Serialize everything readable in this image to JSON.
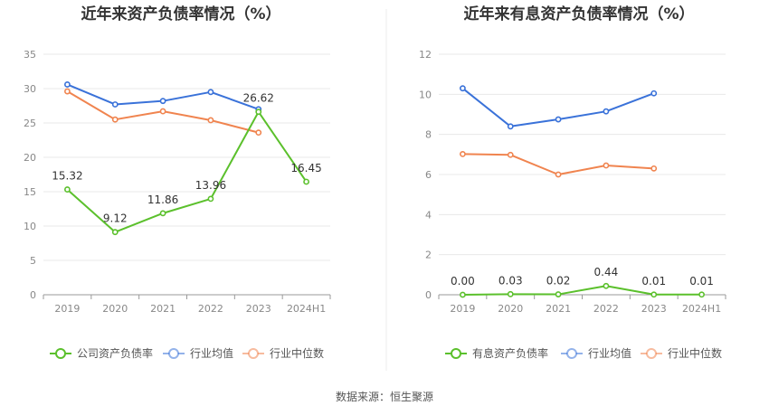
{
  "source": "数据来源：恒生聚源",
  "chart_data": [
    {
      "type": "line",
      "title": "近年来资产负债率情况（%）",
      "categories": [
        "2019",
        "2020",
        "2021",
        "2022",
        "2023",
        "2024H1"
      ],
      "ylim": [
        0,
        35
      ],
      "yticks": [
        0,
        5,
        10,
        15,
        20,
        25,
        30,
        35
      ],
      "grid": true,
      "legend_position": "bottom",
      "series": [
        {
          "name": "公司资产负债率",
          "color": "#5bc02c",
          "values": [
            15.32,
            9.12,
            11.86,
            13.96,
            26.62,
            16.45
          ],
          "labels": [
            "15.32",
            "9.12",
            "11.86",
            "13.96",
            "26.62",
            "16.45"
          ]
        },
        {
          "name": "行业均值",
          "color": "#3a72d9",
          "values": [
            30.6,
            27.7,
            28.2,
            29.5,
            27.0,
            null
          ],
          "labels": []
        },
        {
          "name": "行业中位数",
          "color": "#f0844f",
          "values": [
            29.6,
            25.5,
            26.7,
            25.4,
            23.6,
            null
          ],
          "labels": []
        }
      ]
    },
    {
      "type": "line",
      "title": "近年来有息资产负债率情况（%）",
      "categories": [
        "2019",
        "2020",
        "2021",
        "2022",
        "2023",
        "2024H1"
      ],
      "ylim": [
        0,
        12
      ],
      "yticks": [
        0,
        2,
        4,
        6,
        8,
        10,
        12
      ],
      "grid": true,
      "legend_position": "bottom",
      "series": [
        {
          "name": "有息资产负债率",
          "color": "#5bc02c",
          "values": [
            0.0,
            0.03,
            0.02,
            0.44,
            0.01,
            0.01
          ],
          "labels": [
            "0.00",
            "0.03",
            "0.02",
            "0.44",
            "0.01",
            "0.01"
          ]
        },
        {
          "name": "行业均值",
          "color": "#3a72d9",
          "values": [
            10.3,
            8.4,
            8.75,
            9.15,
            10.05,
            null
          ],
          "labels": []
        },
        {
          "name": "行业中位数",
          "color": "#f0844f",
          "values": [
            7.02,
            6.98,
            6.0,
            6.45,
            6.3,
            null
          ],
          "labels": []
        }
      ]
    }
  ]
}
